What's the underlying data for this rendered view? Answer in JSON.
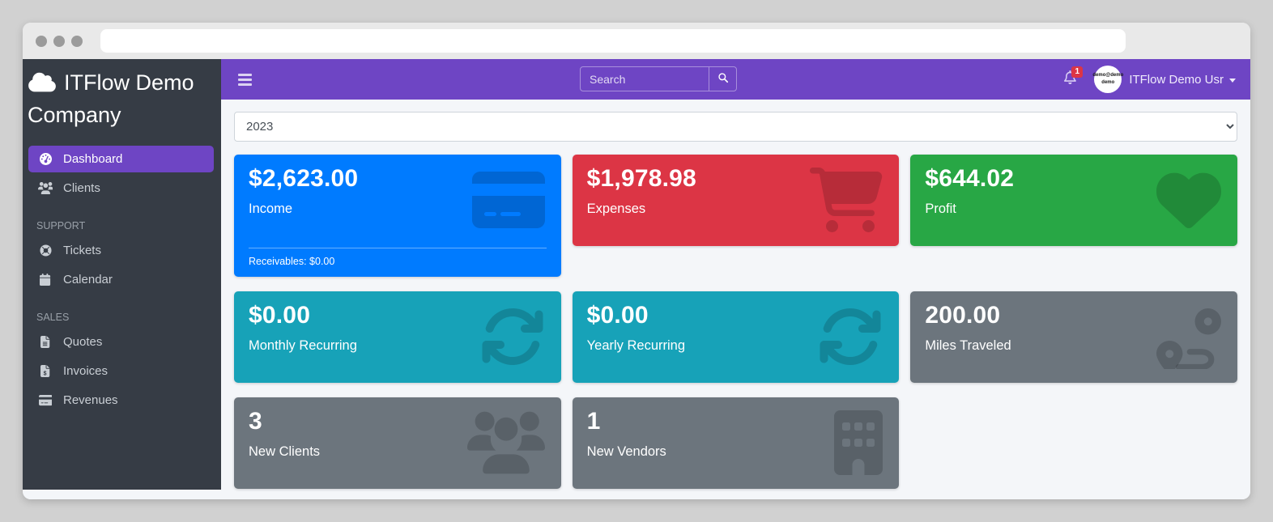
{
  "browser": {
    "url": ""
  },
  "topbar": {
    "search_placeholder": "Search",
    "notification_count": "1",
    "user_name": "ITFlow Demo Usr",
    "avatar_text_line1": "demo@demo",
    "avatar_text_line2": "demo"
  },
  "sidebar": {
    "brand": "ITFlow Demo Company",
    "top_items": [
      {
        "label": "Dashboard",
        "icon": "gauge",
        "active": true
      },
      {
        "label": "Clients",
        "icon": "users",
        "active": false
      }
    ],
    "sections": [
      {
        "heading": "SUPPORT",
        "items": [
          {
            "label": "Tickets",
            "icon": "life-ring"
          },
          {
            "label": "Calendar",
            "icon": "calendar"
          }
        ]
      },
      {
        "heading": "SALES",
        "items": [
          {
            "label": "Quotes",
            "icon": "file-lines"
          },
          {
            "label": "Invoices",
            "icon": "file-invoice-dollar"
          },
          {
            "label": "Revenues",
            "icon": "credit-card"
          }
        ]
      }
    ]
  },
  "filters": {
    "year_selected": "2023"
  },
  "cards": [
    {
      "value": "$2,623.00",
      "label": "Income",
      "icon": "credit-card",
      "color": "#007bff",
      "footer": "Receivables: $0.00"
    },
    {
      "value": "$1,978.98",
      "label": "Expenses",
      "icon": "cart",
      "color": "#dc3545"
    },
    {
      "value": "$644.02",
      "label": "Profit",
      "icon": "heart",
      "color": "#28a745"
    },
    {
      "value": "$0.00",
      "label": "Monthly Recurring",
      "icon": "sync",
      "color": "#17a2b8"
    },
    {
      "value": "$0.00",
      "label": "Yearly Recurring",
      "icon": "sync",
      "color": "#17a2b8"
    },
    {
      "value": "200.00",
      "label": "Miles Traveled",
      "icon": "route",
      "color": "#6c757d"
    },
    {
      "value": "3",
      "label": "New Clients",
      "icon": "users",
      "color": "#6c757d"
    },
    {
      "value": "1",
      "label": "New Vendors",
      "icon": "building",
      "color": "#6c757d"
    }
  ],
  "colors": {
    "navbar": "#6e45c4",
    "sidebar": "#363c45",
    "accent": "#6e45c4",
    "badge": "#dc3545",
    "content_bg": "#f4f6f9"
  }
}
